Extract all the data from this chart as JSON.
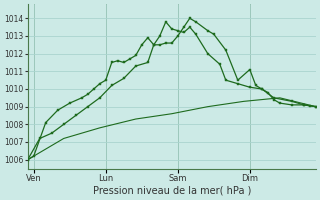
{
  "background_color": "#cceae6",
  "grid_color": "#aad4cf",
  "line_color": "#1e6b1e",
  "xlabel": "Pression niveau de la mer( hPa )",
  "ylim": [
    1005.5,
    1014.8
  ],
  "yticks": [
    1006,
    1007,
    1008,
    1009,
    1010,
    1011,
    1012,
    1013,
    1014
  ],
  "xlim": [
    0,
    48
  ],
  "xtick_labels": [
    "Ven",
    "Lun",
    "Sam",
    "Dim"
  ],
  "xtick_positions": [
    1,
    13,
    25,
    37
  ],
  "vline_positions": [
    1,
    13,
    25,
    37
  ],
  "series1_x": [
    0,
    1,
    3,
    5,
    7,
    9,
    10,
    11,
    12,
    13,
    14,
    15,
    16,
    17,
    18,
    19,
    20,
    21,
    22,
    23,
    24,
    25,
    26,
    27,
    28,
    30,
    31,
    33,
    35,
    37,
    38,
    39,
    40,
    41,
    42,
    44,
    46,
    47,
    48
  ],
  "series1_y": [
    1006.0,
    1006.2,
    1008.1,
    1008.8,
    1009.2,
    1009.5,
    1009.7,
    1010.0,
    1010.3,
    1010.5,
    1011.5,
    1011.6,
    1011.5,
    1011.7,
    1011.9,
    1012.5,
    1012.9,
    1012.5,
    1012.5,
    1012.6,
    1012.6,
    1013.0,
    1013.5,
    1014.0,
    1013.8,
    1013.3,
    1013.1,
    1012.2,
    1010.5,
    1011.1,
    1010.2,
    1010.0,
    1009.8,
    1009.4,
    1009.2,
    1009.1,
    1009.1,
    1009.05,
    1009.0
  ],
  "series2_x": [
    0,
    2,
    4,
    6,
    8,
    10,
    12,
    14,
    16,
    18,
    20,
    21,
    22,
    23,
    24,
    25,
    26,
    27,
    28,
    30,
    32,
    33,
    35,
    37,
    39,
    41,
    44,
    46,
    48
  ],
  "series2_y": [
    1006.0,
    1007.2,
    1007.5,
    1008.0,
    1008.5,
    1009.0,
    1009.5,
    1010.2,
    1010.6,
    1011.3,
    1011.5,
    1012.5,
    1013.0,
    1013.8,
    1013.4,
    1013.3,
    1013.2,
    1013.5,
    1013.1,
    1012.0,
    1011.4,
    1010.5,
    1010.3,
    1010.1,
    1010.0,
    1009.5,
    1009.3,
    1009.1,
    1009.0
  ],
  "series3_x": [
    0,
    6,
    12,
    18,
    24,
    30,
    36,
    42,
    48
  ],
  "series3_y": [
    1006.0,
    1007.2,
    1007.8,
    1008.3,
    1008.6,
    1009.0,
    1009.3,
    1009.5,
    1009.0
  ]
}
